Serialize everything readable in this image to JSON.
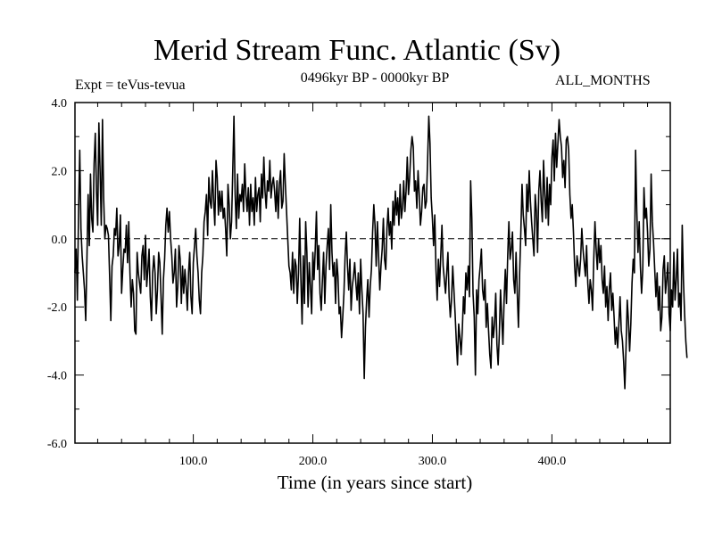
{
  "chart_data": {
    "type": "line",
    "title": "Merid Stream Func. Atlantic (Sv)",
    "subtitle_left": "Expt = teVus-tevua",
    "subtitle_center": "0496kyr BP - 0000kyr BP",
    "subtitle_right": "ALL_MONTHS",
    "xlabel": "Time (in years since start)",
    "ylabel": "",
    "xlim": [
      1,
      499
    ],
    "ylim": [
      -6.0,
      4.0
    ],
    "x_ticks": [
      100,
      200,
      300,
      400
    ],
    "x_tick_labels": [
      "100.0",
      "200.0",
      "300.0",
      "400.0"
    ],
    "y_ticks": [
      -6,
      -4,
      -2,
      0,
      2,
      4
    ],
    "y_tick_labels": [
      "-6.0",
      "-4.0",
      "-2.0",
      "0.0",
      "2.0",
      "4.0"
    ],
    "zero_line": "dashed",
    "grid": false,
    "series": [
      {
        "color": "#000000",
        "x_start": 1,
        "x_step": 1,
        "values": [
          -1.0,
          -0.3,
          -1.8,
          0.8,
          2.6,
          0.3,
          -0.5,
          -1.0,
          -1.5,
          -2.4,
          -0.6,
          1.3,
          -0.2,
          1.9,
          0.6,
          0.2,
          2.2,
          3.1,
          1.4,
          0.4,
          3.4,
          2.0,
          0.4,
          3.5,
          1.2,
          0.0,
          0.4,
          0.3,
          0.1,
          -1.1,
          -2.4,
          -0.8,
          -0.5,
          0.3,
          0.1,
          0.9,
          -0.5,
          -0.2,
          0.7,
          -1.6,
          -0.9,
          -0.3,
          -0.4,
          0.4,
          -0.7,
          0.5,
          -1.0,
          -2.0,
          -1.2,
          -1.6,
          -2.7,
          -2.8,
          -0.4,
          -1.0,
          -1.3,
          -1.6,
          -0.5,
          -0.2,
          -1.2,
          0.1,
          -1.4,
          -0.9,
          -0.3,
          -1.7,
          -2.4,
          -1.0,
          -0.5,
          -1.0,
          -2.2,
          -1.5,
          -0.4,
          -0.7,
          -1.7,
          -2.8,
          -1.2,
          -0.6,
          0.4,
          0.9,
          0.2,
          0.8,
          0.0,
          -0.5,
          -1.3,
          -1.0,
          -0.3,
          -2.0,
          -1.4,
          -0.2,
          -0.6,
          -1.9,
          -0.8,
          -1.6,
          -0.9,
          -1.4,
          -2.1,
          -1.0,
          -0.4,
          -1.7,
          -2.2,
          -0.7,
          -0.2,
          0.3,
          -0.5,
          -1.0,
          -1.8,
          -2.2,
          -1.0,
          -0.5,
          0.5,
          0.8,
          1.3,
          0.1,
          1.8,
          1.1,
          0.9,
          2.0,
          1.1,
          0.4,
          2.3,
          1.8,
          0.7,
          1.4,
          0.8,
          1.4,
          0.6,
          0.9,
          0.3,
          -0.5,
          1.6,
          1.0,
          0.0,
          0.5,
          2.0,
          3.6,
          1.3,
          0.3,
          1.9,
          0.6,
          1.3,
          1.1,
          1.6,
          0.8,
          2.2,
          1.3,
          0.8,
          1.5,
          0.4,
          1.6,
          0.8,
          1.2,
          0.4,
          1.8,
          0.8,
          1.3,
          1.5,
          0.5,
          1.9,
          1.2,
          2.4,
          1.4,
          0.9,
          1.7,
          1.4,
          2.3,
          1.2,
          1.6,
          1.8,
          1.4,
          0.8,
          1.7,
          0.6,
          1.6,
          2.0,
          0.9,
          1.1,
          2.5,
          1.6,
          0.8,
          0.0,
          -0.8,
          -1.0,
          -1.5,
          -0.4,
          -1.6,
          -0.6,
          -0.8,
          -1.9,
          -1.0,
          0.6,
          -1.2,
          -2.5,
          -0.5,
          -1.9,
          0.5,
          -0.4,
          -2.0,
          -0.7,
          -1.4,
          -2.2,
          -0.4,
          -1.2,
          -0.3,
          0.8,
          -0.9,
          -0.2,
          -1.6,
          -2.1,
          -1.2,
          -0.4,
          -1.9,
          -0.8,
          -0.2,
          0.3,
          -0.9,
          1.0,
          -0.4,
          -1.1,
          -0.7,
          -1.9,
          -0.6,
          -1.1,
          -2.2,
          -2.0,
          -2.9,
          -2.3,
          -1.6,
          -0.5,
          0.2,
          -0.8,
          -1.5,
          -0.6,
          -2.1,
          -1.4,
          -1.1,
          -0.7,
          -1.3,
          -1.8,
          -1.0,
          -2.2,
          -0.6,
          -1.5,
          -2.2,
          -4.1,
          -2.6,
          -1.8,
          -1.2,
          -2.3,
          -1.4,
          -0.9,
          0.2,
          1.0,
          0.4,
          -0.8,
          0.5,
          -0.5,
          -1.5,
          -0.8,
          -0.3,
          0.6,
          -0.6,
          -0.9,
          0.3,
          0.9,
          0.1,
          0.5,
          -0.3,
          1.1,
          0.4,
          1.4,
          0.7,
          1.2,
          0.4,
          1.6,
          0.6,
          0.9,
          1.7,
          0.8,
          1.4,
          2.4,
          1.3,
          1.8,
          2.6,
          3.0,
          2.7,
          1.4,
          1.7,
          0.9,
          2.0,
          1.3,
          0.4,
          0.8,
          1.5,
          1.6,
          0.9,
          1.1,
          2.3,
          3.6,
          2.8,
          1.2,
          0.6,
          -0.2,
          0.7,
          -0.9,
          -1.8,
          -0.6,
          -1.4,
          -0.5,
          0.4,
          -0.8,
          -1.2,
          -1.6,
          -1.0,
          -0.4,
          -1.7,
          -2.3,
          -1.8,
          -0.8,
          -1.5,
          -2.2,
          -3.0,
          -3.7,
          -2.5,
          -2.9,
          -3.4,
          -2.7,
          -1.7,
          -2.2,
          -1.0,
          -1.5,
          -0.8,
          -1.7,
          1.7,
          0.6,
          -1.6,
          -2.3,
          -4.0,
          -1.5,
          -2.2,
          -1.2,
          -0.8,
          -0.3,
          -1.5,
          -1.8,
          -1.2,
          -2.6,
          -1.9,
          -2.7,
          -3.4,
          -3.8,
          -2.3,
          -2.9,
          -2.5,
          -1.6,
          -3.1,
          -3.7,
          -2.8,
          -1.5,
          -2.3,
          -3.1,
          -1.8,
          -0.9,
          -1.9,
          -0.5,
          0.5,
          -0.6,
          -0.3,
          0.2,
          -1.2,
          -1.6,
          -0.4,
          -1.6,
          -2.6,
          -1.0,
          0.2,
          1.6,
          0.7,
          0.3,
          -0.2,
          1.6,
          0.8,
          2.0,
          1.1,
          0.5,
          0.0,
          -0.5,
          1.3,
          0.8,
          -0.4,
          1.4,
          2.0,
          1.1,
          0.5,
          2.3,
          1.3,
          0.6,
          1.8,
          0.4,
          1.6,
          1.0,
          2.4,
          2.9,
          1.7,
          3.1,
          2.1,
          2.8,
          3.5,
          3.0,
          2.7,
          1.8,
          2.3,
          1.5,
          2.9,
          3.0,
          2.6,
          1.3,
          0.6,
          1.0,
          0.2,
          -0.8,
          -1.4,
          -0.5,
          -0.8,
          -1.1,
          -0.6,
          0.3,
          -0.3,
          -0.7,
          -1.1,
          -0.2,
          -1.3,
          -1.9,
          -1.2,
          -1.5,
          -2.1,
          -0.6,
          0.5,
          -0.3,
          -0.9,
          0.0,
          -0.7,
          -0.2,
          -1.2,
          -1.6,
          -0.8,
          -2.0,
          -1.4,
          -2.4,
          -1.5,
          -1.0,
          -2.1,
          -1.6,
          -2.3,
          -3.1,
          -2.6,
          -3.2,
          -2.5,
          -1.7,
          -2.7,
          -3.0,
          -3.6,
          -4.4,
          -3.2,
          -1.8,
          -2.4,
          -3.3,
          -2.5,
          -1.3,
          -0.6,
          -1.0,
          2.6,
          0.8,
          -0.4,
          0.5,
          -0.8,
          -1.6,
          -0.9,
          1.5,
          0.6,
          0.9,
          0.2,
          -0.8,
          -0.3,
          1.9,
          0.5,
          -0.1,
          -0.9,
          -1.7,
          -1.0,
          -2.1,
          -1.4,
          -2.7,
          -2.3,
          -0.9,
          -0.5,
          -1.6,
          -1.2,
          -0.7,
          -2.2,
          -2.7,
          -1.5,
          -2.0,
          -0.4,
          -1.8,
          -1.2,
          -0.3,
          -2.0,
          -1.6,
          -2.4,
          0.4,
          -1.2,
          -2.2,
          -3.0,
          -3.5
        ]
      }
    ]
  }
}
